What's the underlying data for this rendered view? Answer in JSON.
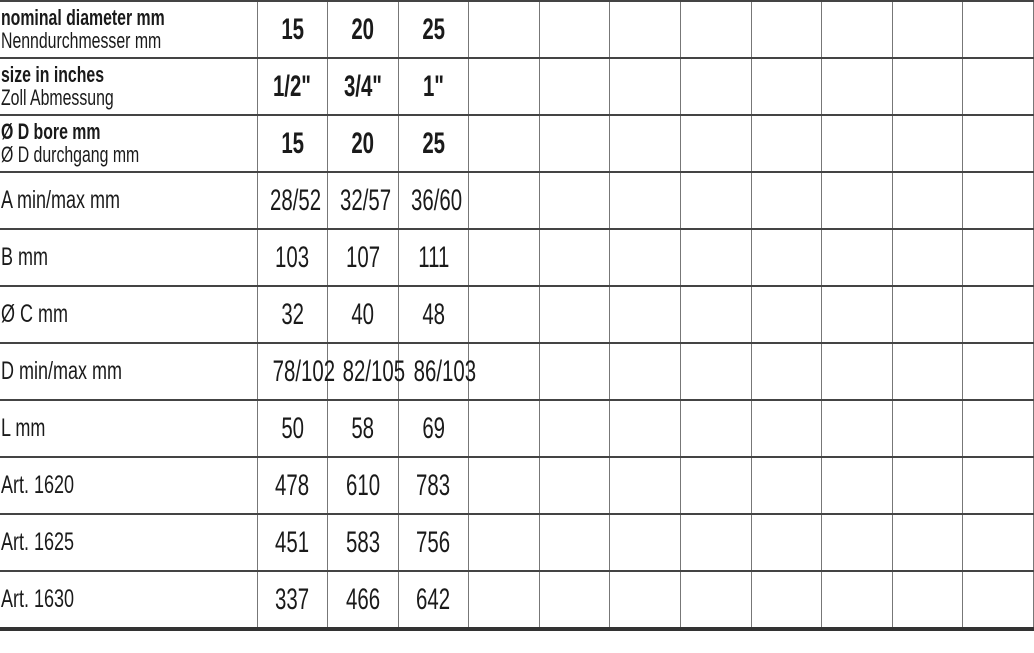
{
  "table": {
    "extra_empty_columns": 8,
    "rows": [
      {
        "label": "nominal diameter mm",
        "label_de": "Nenndurchmesser mm",
        "header": true,
        "values": [
          "15",
          "20",
          "25"
        ]
      },
      {
        "label": "size in inches",
        "label_de": "Zoll Abmessung",
        "header": true,
        "values": [
          "1/2\"",
          "3/4\"",
          "1\""
        ]
      },
      {
        "label": "Ø D bore mm",
        "label_de": "Ø D durchgang mm",
        "header": true,
        "values": [
          "15",
          "20",
          "25"
        ]
      },
      {
        "label": "A min/max mm",
        "values": [
          "28/52",
          "32/57",
          "36/60"
        ]
      },
      {
        "label": "B mm",
        "values": [
          "103",
          "107",
          "111"
        ]
      },
      {
        "label": "Ø C mm",
        "values": [
          "32",
          "40",
          "48"
        ]
      },
      {
        "label": "D min/max mm",
        "values": [
          "78/102",
          "82/105",
          "86/103"
        ]
      },
      {
        "label": "L mm",
        "values": [
          "50",
          "58",
          "69"
        ]
      },
      {
        "label": "Art. 1620",
        "values": [
          "478",
          "610",
          "783"
        ]
      },
      {
        "label": "Art. 1625",
        "values": [
          "451",
          "583",
          "756"
        ]
      },
      {
        "label": "Art. 1630",
        "values": [
          "337",
          "466",
          "642"
        ]
      }
    ]
  }
}
